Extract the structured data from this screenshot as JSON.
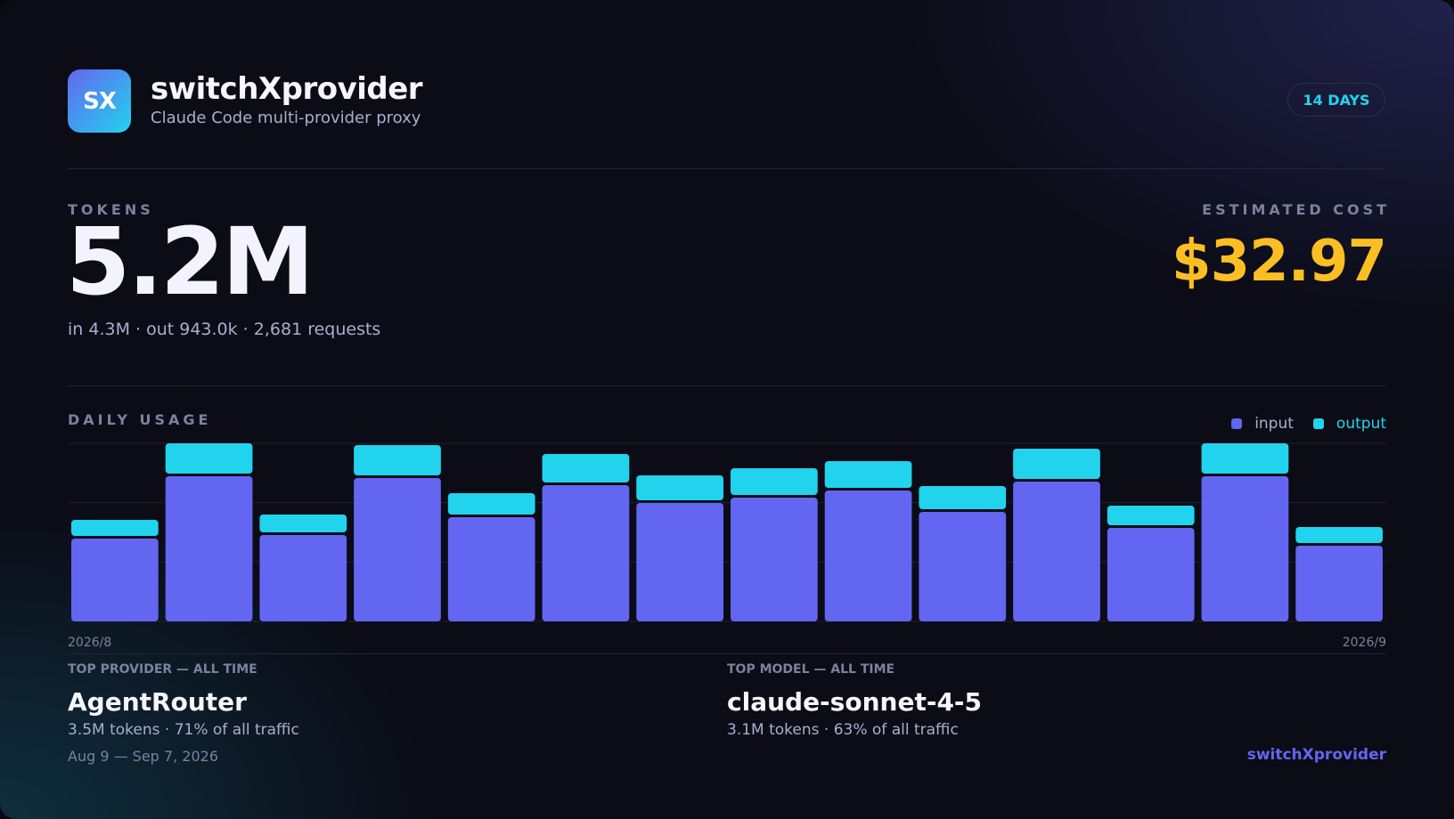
{
  "header": {
    "logo_text": "SX",
    "app_name": "switchXprovider",
    "subtitle": "Claude Code multi-provider proxy",
    "period_badge": "14 DAYS"
  },
  "tokens": {
    "label": "TOKENS",
    "total": "5.2M",
    "breakdown": "in 4.3M · out 943.0k · 2,681 requests"
  },
  "cost": {
    "label": "ESTIMATED COST",
    "value": "$32.97"
  },
  "daily_usage": {
    "label": "DAILY USAGE",
    "start_label": "2026/8",
    "end_label": "2026/9"
  },
  "colors": {
    "input": "#6366f1",
    "output": "#22d3ee",
    "cost": "#fbbf24"
  },
  "chart_data": {
    "type": "bar",
    "stacked": true,
    "title": "DAILY USAGE",
    "categories": [
      "",
      "",
      "",
      "",
      "",
      "",
      "",
      "",
      "",
      "",
      "",
      "",
      "",
      ""
    ],
    "series": [
      {
        "name": "input",
        "values": [
          0.47,
          0.82,
          0.49,
          0.81,
          0.59,
          0.77,
          0.67,
          0.7,
          0.74,
          0.62,
          0.79,
          0.53,
          0.82,
          0.43
        ]
      },
      {
        "name": "output",
        "values": [
          0.1,
          0.18,
          0.11,
          0.18,
          0.13,
          0.17,
          0.15,
          0.16,
          0.16,
          0.14,
          0.18,
          0.12,
          0.18,
          0.1
        ]
      }
    ],
    "ylim": [
      0,
      1.0
    ],
    "grid": true,
    "legend": "top-right",
    "xlabel": "",
    "ylabel": ""
  },
  "top_provider": {
    "label": "TOP PROVIDER — ALL TIME",
    "name": "AgentRouter",
    "meta": "3.5M tokens · 71% of all traffic"
  },
  "top_model": {
    "label": "TOP MODEL — ALL TIME",
    "name": "claude-sonnet-4-5",
    "meta": "3.1M tokens · 63% of all traffic"
  },
  "footer": {
    "date_range": "Aug 9 — Sep 7, 2026",
    "brand": "switchXprovider"
  }
}
